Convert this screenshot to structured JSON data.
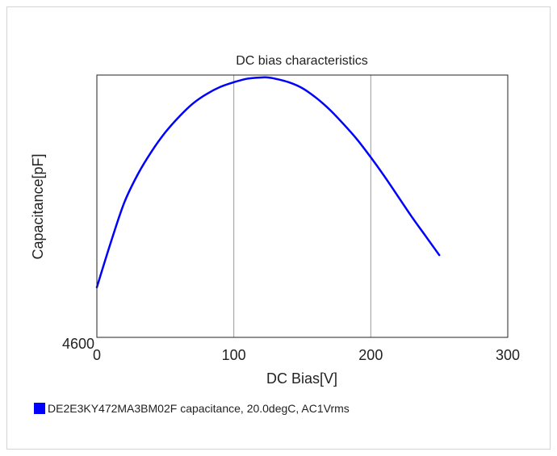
{
  "chart_data": {
    "type": "line",
    "title": "DC bias characteristics",
    "xlabel": "DC Bias[V]",
    "ylabel": "Capacitance[pF]",
    "xlim": [
      0,
      300
    ],
    "ylim": [
      4600,
      4820
    ],
    "x_ticks": [
      "0",
      "100",
      "200",
      "300"
    ],
    "y_ticks": [
      "4600"
    ],
    "grid": "vertical lines at x ticks",
    "legend_position": "bottom-left",
    "series": [
      {
        "name": "DE2E3KY472MA3BM02F capacitance, 20.0degC, AC1Vrms",
        "color": "#0000ff",
        "x": [
          0,
          10,
          20,
          30,
          40,
          50,
          60,
          70,
          80,
          90,
          100,
          110,
          120,
          125,
          130,
          140,
          150,
          160,
          170,
          180,
          190,
          200,
          210,
          220,
          230,
          240,
          250
        ],
        "y": [
          4642,
          4679,
          4713,
          4737,
          4756,
          4772,
          4785,
          4796,
          4804,
          4810,
          4814,
          4817,
          4818,
          4818,
          4817,
          4814,
          4809,
          4801,
          4791,
          4779,
          4766,
          4751,
          4735,
          4718,
          4701,
          4685,
          4669
        ]
      }
    ]
  }
}
